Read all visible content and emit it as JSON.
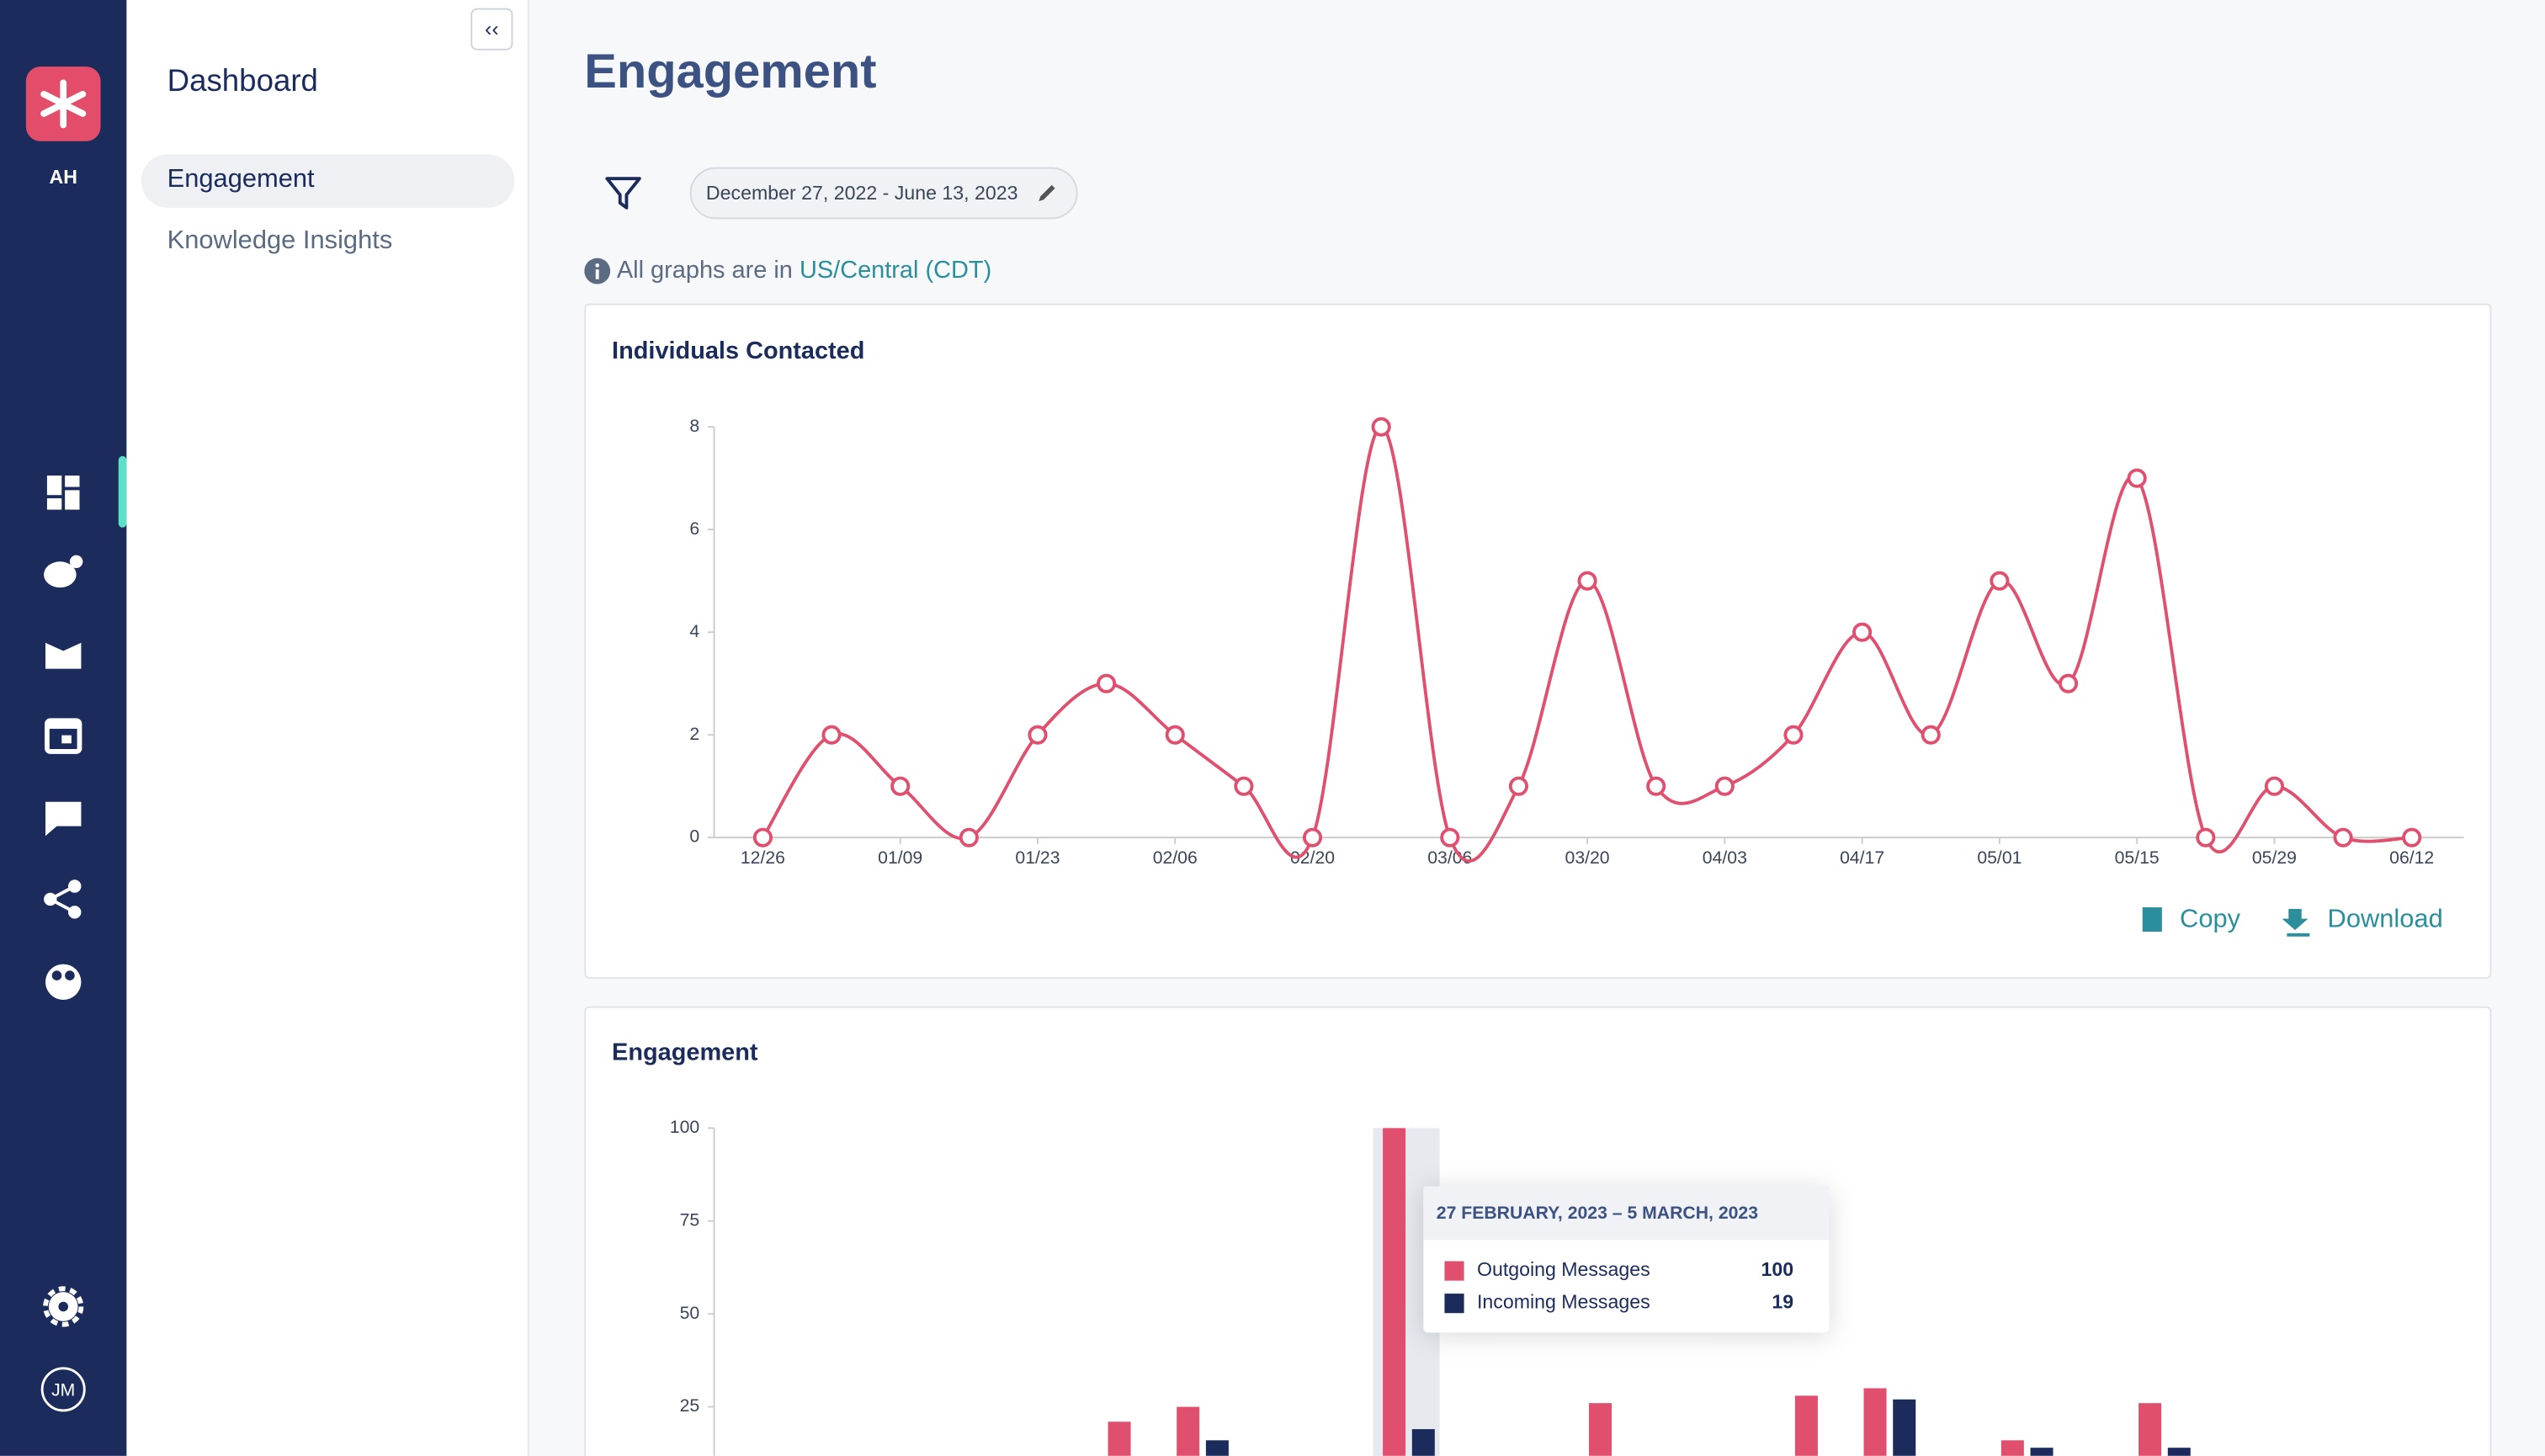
{
  "sidebar": {
    "initials": "AH",
    "user": "JM"
  },
  "nav": {
    "title": "Dashboard",
    "items": [
      "Engagement",
      "Knowledge Insights"
    ]
  },
  "page": {
    "title": "Engagement",
    "date_range": "December 27, 2022 - June 13, 2023",
    "tz_note": "All graphs are in",
    "tz_link": "US/Central (CDT)"
  },
  "actions": [
    "Copy",
    "Download"
  ],
  "tooltip": {
    "title": "27 FEBRUARY, 2023 – 5 MARCH, 2023"
  },
  "chart_data": [
    {
      "type": "line",
      "title": "Individuals Contacted",
      "color": "#e0506e",
      "categories": [
        "12/26",
        null,
        "01/09",
        null,
        "01/23",
        null,
        "02/06",
        null,
        "02/20",
        null,
        "03/06",
        null,
        "03/20",
        null,
        "04/03",
        null,
        "04/17",
        null,
        "05/01",
        null,
        "05/15",
        null,
        "05/29",
        null,
        "06/12"
      ],
      "values": [
        0,
        2,
        1,
        0,
        2,
        3,
        2,
        1,
        0,
        8,
        0,
        1,
        5,
        1,
        1,
        2,
        4,
        2,
        5,
        3,
        7,
        0,
        1,
        0,
        0
      ],
      "ylim": [
        0,
        8
      ],
      "yticks": [
        0,
        2,
        4,
        6,
        8
      ]
    },
    {
      "type": "bar",
      "title": "Engagement",
      "categories": [
        null,
        null,
        null,
        null,
        null,
        null,
        null,
        null,
        null,
        null,
        null,
        null,
        null,
        null,
        null,
        null,
        null,
        null,
        null,
        null,
        null,
        null,
        null,
        null,
        null
      ],
      "series": [
        {
          "name": "Outgoing Messages",
          "color": "#e0506e",
          "values": [
            null,
            null,
            null,
            null,
            null,
            21,
            25,
            null,
            null,
            100,
            null,
            null,
            26,
            null,
            null,
            28,
            30,
            null,
            16,
            null,
            26,
            null,
            null,
            null,
            null
          ]
        },
        {
          "name": "Incoming Messages",
          "color": "#1b2c5c",
          "values": [
            null,
            null,
            null,
            null,
            null,
            null,
            16,
            null,
            null,
            19,
            null,
            null,
            null,
            null,
            null,
            null,
            27,
            null,
            14,
            null,
            14,
            null,
            null,
            null,
            null
          ]
        }
      ],
      "ylim": [
        0,
        100
      ],
      "yticks": [
        25,
        50,
        75,
        100
      ]
    }
  ]
}
